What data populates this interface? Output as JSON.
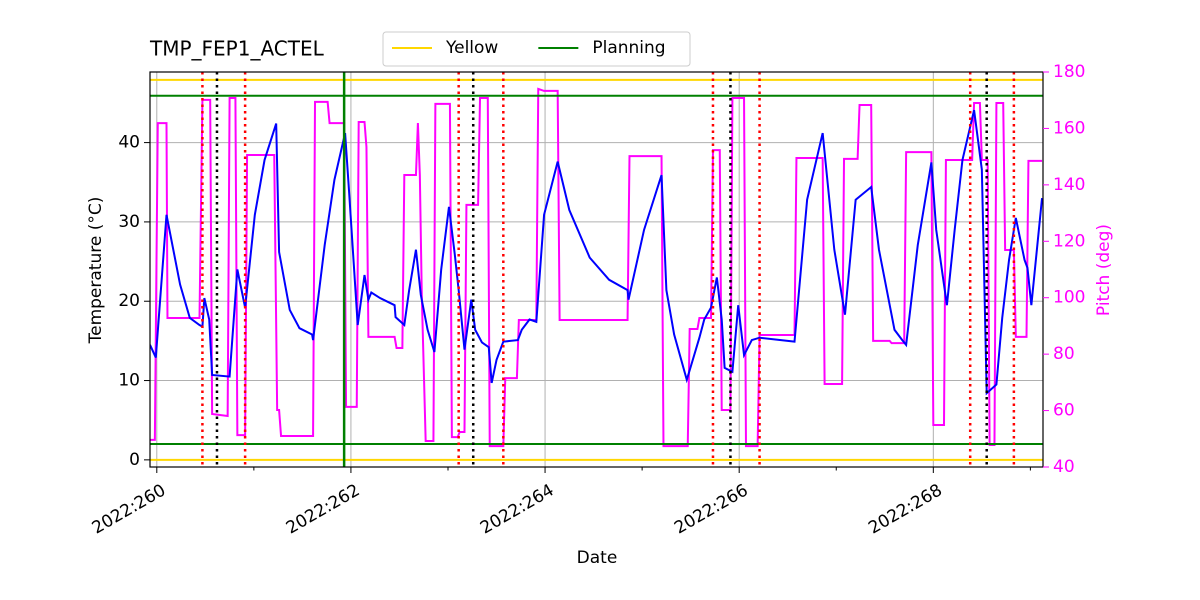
{
  "chart_data": {
    "type": "line",
    "title": "TMP_FEP1_ACTEL",
    "x_label": "Date",
    "y_label": "Temperature (°C)",
    "y2_label": "Pitch (deg)",
    "y2_color": "#ff00ff",
    "xlim": [
      259.93,
      269.13
    ],
    "xticks": [
      {
        "value": 260,
        "label": "2022:260"
      },
      {
        "value": 262,
        "label": "2022:262"
      },
      {
        "value": 264,
        "label": "2022:264"
      },
      {
        "value": 266,
        "label": "2022:266"
      },
      {
        "value": 268,
        "label": "2022:268"
      }
    ],
    "xminorticks": [
      261,
      263,
      265,
      267,
      269
    ],
    "ylim": [
      -0.9,
      48.9
    ],
    "yticks": [
      0,
      10,
      20,
      30,
      40
    ],
    "y2lim": [
      40,
      180
    ],
    "y2ticks": [
      40,
      60,
      80,
      100,
      120,
      140,
      160,
      180
    ],
    "grid": true,
    "legend": "top-center",
    "limit_lines": [
      {
        "name": "Yellow",
        "color": "#ffd700",
        "values": [
          0,
          47.9
        ]
      },
      {
        "name": "Planning",
        "color": "#008000",
        "values": [
          2,
          45.9
        ]
      }
    ],
    "vlines": [
      {
        "color": "#ff0000",
        "style": "dotted",
        "x": [
          260.47,
          260.91,
          263.11,
          263.57,
          265.73,
          266.21,
          268.38,
          268.83
        ]
      },
      {
        "color": "#000000",
        "style": "dotted",
        "x": [
          260.62,
          263.26,
          265.91,
          268.55
        ]
      },
      {
        "color": "#008000",
        "style": "solid",
        "x": [
          261.93
        ]
      }
    ],
    "series": [
      {
        "color": "#ff00ff",
        "axis": "y2",
        "x": [
          259.93,
          259.98,
          260.01,
          260.1,
          260.11,
          260.44,
          260.47,
          260.55,
          260.57,
          260.73,
          260.75,
          260.81,
          260.83,
          260.91,
          260.93,
          261.21,
          261.24,
          261.26,
          261.28,
          261.61,
          261.63,
          261.76,
          261.78,
          261.93,
          261.95,
          262.06,
          262.08,
          262.14,
          262.16,
          262.18,
          262.45,
          262.47,
          262.53,
          262.55,
          262.67,
          262.69,
          262.71,
          262.73,
          262.77,
          262.85,
          262.87,
          263.02,
          263.04,
          263.1,
          263.12,
          263.17,
          263.19,
          263.31,
          263.33,
          263.41,
          263.43,
          263.57,
          263.59,
          263.71,
          263.73,
          263.91,
          263.93,
          263.99,
          264.13,
          264.15,
          264.85,
          264.87,
          265.2,
          265.22,
          265.47,
          265.49,
          265.57,
          265.59,
          265.71,
          265.73,
          265.8,
          265.82,
          265.91,
          265.93,
          266.05,
          266.07,
          266.19,
          266.21,
          266.57,
          266.59,
          266.86,
          266.88,
          267.06,
          267.08,
          267.22,
          267.24,
          267.36,
          267.38,
          267.55,
          267.57,
          267.7,
          267.72,
          267.98,
          268.0,
          268.11,
          268.13,
          268.4,
          268.42,
          268.48,
          268.5,
          268.56,
          268.58,
          268.63,
          268.65,
          268.72,
          268.74,
          268.83,
          268.85,
          268.96,
          268.98,
          269.12
        ],
        "values": [
          49.6,
          49.6,
          161.9,
          161.9,
          92.8,
          92.8,
          170.1,
          170.1,
          58.8,
          58.1,
          170.8,
          170.8,
          51.3,
          51.3,
          150.6,
          150.6,
          60.2,
          60.2,
          51.0,
          51.0,
          169.4,
          169.4,
          161.9,
          161.9,
          61.3,
          61.3,
          162.3,
          162.3,
          153.4,
          86.1,
          86.1,
          82.2,
          82.2,
          143.5,
          143.5,
          161.9,
          143.5,
          101.0,
          49.2,
          49.2,
          168.7,
          168.7,
          50.6,
          50.6,
          52.4,
          52.4,
          132.9,
          132.9,
          170.8,
          170.8,
          47.4,
          47.4,
          71.5,
          71.5,
          92.1,
          92.1,
          174.0,
          173.3,
          173.3,
          92.1,
          92.1,
          150.2,
          150.2,
          47.4,
          47.4,
          88.9,
          88.9,
          92.8,
          92.8,
          152.3,
          152.3,
          60.2,
          60.2,
          170.8,
          170.8,
          47.4,
          47.4,
          86.8,
          86.8,
          149.5,
          149.5,
          69.4,
          69.4,
          149.2,
          149.2,
          168.3,
          168.3,
          84.7,
          84.7,
          83.9,
          83.9,
          151.6,
          151.6,
          54.9,
          54.9,
          148.8,
          148.8,
          169.0,
          169.0,
          148.8,
          148.8,
          47.8,
          47.8,
          169.0,
          169.0,
          116.9,
          116.9,
          86.1,
          86.1,
          148.5,
          148.5
        ]
      },
      {
        "color": "#0000ff",
        "x": [
          259.93,
          259.99,
          260.1,
          260.24,
          260.34,
          260.44,
          260.47,
          260.49,
          260.54,
          260.57,
          260.75,
          260.83,
          260.91,
          261.01,
          261.11,
          261.23,
          261.26,
          261.37,
          261.47,
          261.6,
          261.61,
          261.73,
          261.83,
          261.94,
          261.98,
          262.07,
          262.14,
          262.18,
          262.21,
          262.3,
          262.45,
          262.46,
          262.55,
          262.6,
          262.67,
          262.72,
          262.79,
          262.86,
          262.93,
          263.01,
          263.07,
          263.11,
          263.17,
          263.24,
          263.28,
          263.35,
          263.42,
          263.45,
          263.5,
          263.57,
          263.72,
          263.76,
          263.84,
          263.91,
          263.99,
          264.13,
          264.25,
          264.46,
          264.66,
          264.85,
          264.86,
          265.02,
          265.2,
          265.25,
          265.33,
          265.46,
          265.49,
          265.59,
          265.64,
          265.71,
          265.77,
          265.82,
          265.85,
          265.93,
          265.99,
          266.05,
          266.13,
          266.21,
          266.57,
          266.7,
          266.86,
          266.98,
          267.09,
          267.2,
          267.36,
          267.44,
          267.6,
          267.68,
          267.72,
          267.84,
          267.98,
          268.03,
          268.14,
          268.22,
          268.3,
          268.42,
          268.5,
          268.55,
          268.65,
          268.71,
          268.78,
          268.85,
          268.94,
          268.97,
          269.01,
          269.12
        ],
        "values": [
          14.5,
          12.9,
          30.9,
          22.1,
          17.9,
          17.0,
          16.8,
          20.4,
          17.7,
          10.7,
          10.5,
          24.0,
          19.2,
          30.9,
          37.8,
          42.4,
          26.2,
          18.9,
          16.6,
          15.8,
          15.1,
          27.1,
          35.3,
          41.2,
          34.0,
          17.0,
          23.3,
          20.2,
          21.1,
          20.4,
          19.5,
          18.0,
          17.0,
          21.4,
          26.5,
          20.8,
          16.4,
          13.6,
          24.0,
          31.9,
          25.9,
          21.4,
          13.9,
          20.2,
          16.4,
          14.8,
          14.2,
          9.7,
          12.6,
          14.9,
          15.1,
          16.4,
          17.7,
          17.4,
          30.9,
          37.6,
          31.5,
          25.5,
          22.7,
          21.4,
          20.2,
          29.0,
          35.9,
          21.4,
          15.8,
          10.1,
          11.3,
          15.4,
          17.7,
          19.2,
          23.0,
          17.7,
          11.6,
          11.1,
          19.5,
          13.2,
          15.1,
          15.4,
          14.9,
          32.8,
          41.2,
          26.5,
          18.3,
          32.8,
          34.4,
          26.5,
          16.4,
          15.1,
          14.5,
          27.1,
          37.5,
          29.0,
          19.5,
          29.0,
          37.8,
          44.1,
          36.6,
          8.4,
          9.5,
          17.9,
          25.2,
          30.5,
          25.2,
          24.2,
          19.5,
          33.0
        ]
      }
    ]
  }
}
